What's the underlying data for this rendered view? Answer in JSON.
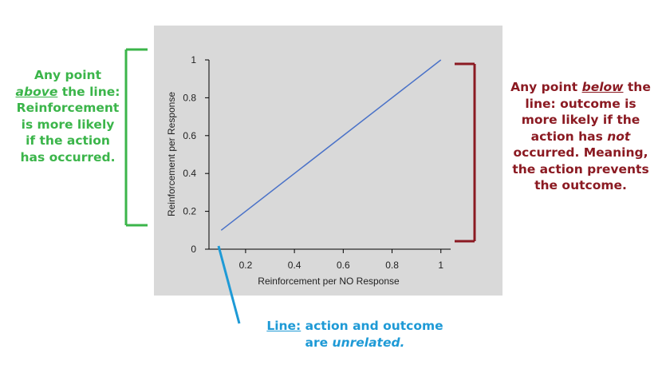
{
  "chart_data": {
    "type": "line",
    "x": [
      0.1,
      1
    ],
    "series": [
      {
        "color": "#4a72c8",
        "values": [
          0.1,
          1
        ]
      }
    ],
    "xlim": [
      0.05,
      1.04
    ],
    "xticks": [
      0.2,
      0.4,
      0.6,
      0.8,
      1
    ],
    "ylim": [
      0,
      1
    ],
    "yticks": [
      0,
      0.2,
      0.4,
      0.6,
      0.8,
      1
    ],
    "xlabel": "Reinforcement per NO Response",
    "ylabel": "Reinforcement per Response"
  },
  "annotations": [
    {
      "lines": [
        [
          "Any point"
        ],
        [
          "above",
          " the line:"
        ],
        [
          "Reinforcement"
        ],
        [
          "is more likely"
        ],
        [
          "if the action"
        ],
        [
          "has occurred."
        ]
      ]
    },
    {
      "lines": [
        [
          "Any point ",
          "below",
          " the"
        ],
        [
          "line: outcome is"
        ],
        [
          "more likely if the"
        ],
        [
          "action has ",
          "not"
        ],
        [
          "occurred. Meaning,"
        ],
        [
          "the action prevents"
        ],
        [
          "the outcome."
        ]
      ]
    },
    {
      "lines": [
        [
          "Line:",
          " action and outcome"
        ],
        [
          "are ",
          "unrelated."
        ]
      ]
    }
  ]
}
